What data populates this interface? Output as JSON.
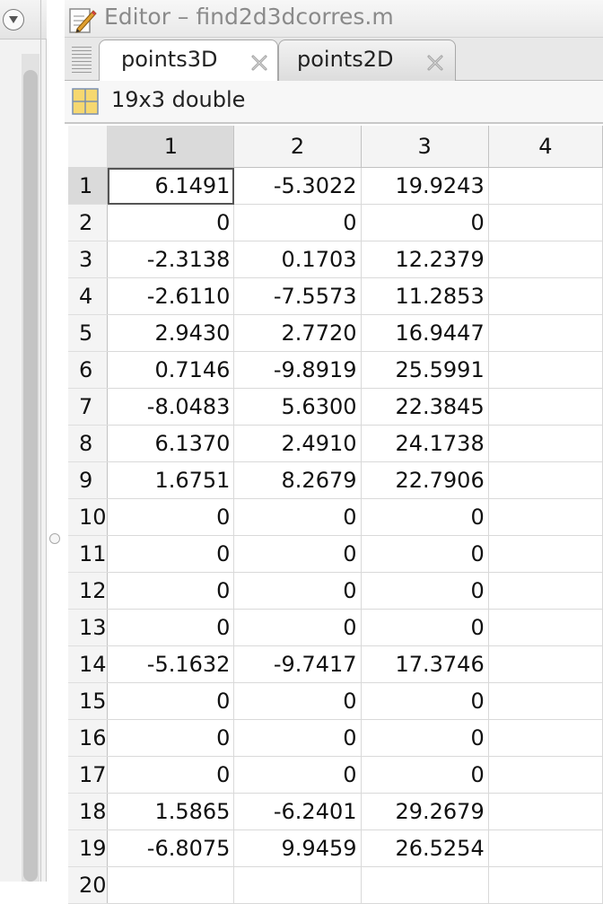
{
  "editor": {
    "title": "Editor – find2d3dcorres.m"
  },
  "tabs": [
    {
      "label": "points3D",
      "active": true
    },
    {
      "label": "points2D",
      "active": false
    }
  ],
  "variable": {
    "size_type": "19x3 double"
  },
  "grid": {
    "columns": [
      "1",
      "2",
      "3",
      "4"
    ],
    "row_labels": [
      "1",
      "2",
      "3",
      "4",
      "5",
      "6",
      "7",
      "8",
      "9",
      "10",
      "11",
      "12",
      "13",
      "14",
      "15",
      "16",
      "17",
      "18",
      "19",
      "20"
    ],
    "rows": [
      [
        "6.1491",
        "-5.3022",
        "19.9243"
      ],
      [
        "0",
        "0",
        "0"
      ],
      [
        "-2.3138",
        "0.1703",
        "12.2379"
      ],
      [
        "-2.6110",
        "-7.5573",
        "11.2853"
      ],
      [
        "2.9430",
        "2.7720",
        "16.9447"
      ],
      [
        "0.7146",
        "-9.8919",
        "25.5991"
      ],
      [
        "-8.0483",
        "5.6300",
        "22.3845"
      ],
      [
        "6.1370",
        "2.4910",
        "24.1738"
      ],
      [
        "1.6751",
        "8.2679",
        "22.7906"
      ],
      [
        "0",
        "0",
        "0"
      ],
      [
        "0",
        "0",
        "0"
      ],
      [
        "0",
        "0",
        "0"
      ],
      [
        "0",
        "0",
        "0"
      ],
      [
        "-5.1632",
        "-9.7417",
        "17.3746"
      ],
      [
        "0",
        "0",
        "0"
      ],
      [
        "0",
        "0",
        "0"
      ],
      [
        "0",
        "0",
        "0"
      ],
      [
        "1.5865",
        "-6.2401",
        "29.2679"
      ],
      [
        "-6.8075",
        "9.9459",
        "26.5254"
      ],
      [
        "",
        "",
        ""
      ]
    ],
    "selected_cell": {
      "row": 1,
      "col": 1
    }
  },
  "colors": {
    "header_bg": "#f4f4f4",
    "header_selected_bg": "#dadada",
    "grid_line": "#d9d9d9"
  },
  "icons": {
    "sidebar_toggle": "chevron-down-circle-icon",
    "editor": "edit-pencil-icon",
    "tab_close": "close-x-icon",
    "variable": "table-grid-icon"
  }
}
